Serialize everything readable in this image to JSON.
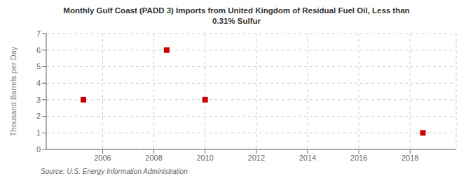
{
  "chart_data": {
    "type": "scatter",
    "title": "Monthly Gulf Coast (PADD 3) Imports from United Kingdom of Residual Fuel Oil, Less than\n0.31% Sulfur",
    "ylabel": "Thousand Barrels per Day",
    "annotations": [
      "Source: U.S. Energy Information Administration"
    ],
    "x": [
      2005.25,
      2008.5,
      2010.0,
      2018.5
    ],
    "values": [
      3.0,
      6.0,
      3.0,
      1.0
    ],
    "color": "#cc0000",
    "marker": "square",
    "xlim": [
      2003.8,
      2019.8
    ],
    "ylim": [
      0,
      7
    ],
    "xticks": [
      2006,
      2008,
      2010,
      2012,
      2014,
      2016,
      2018
    ],
    "yticks": [
      0,
      1,
      2,
      3,
      4,
      5,
      6,
      7
    ],
    "grid": true
  }
}
